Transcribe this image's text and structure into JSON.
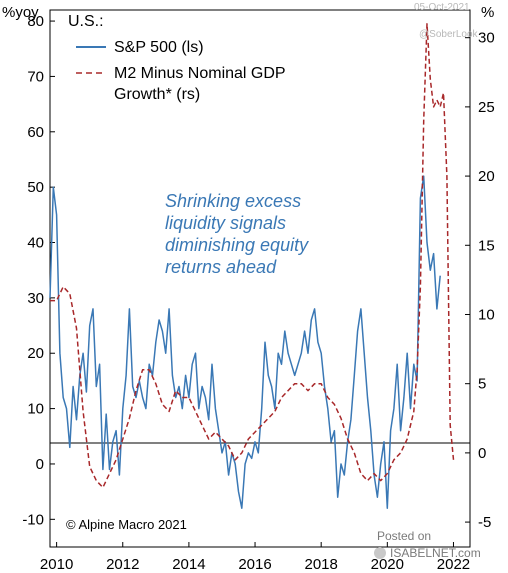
{
  "chart_data": {
    "type": "line",
    "legend_title": "U.S.:",
    "left_unit": "%yoy",
    "right_unit": "%",
    "x_ticks": [
      "2010",
      "2012",
      "2014",
      "2016",
      "2018",
      "2020",
      "2022"
    ],
    "x_range": [
      2009.8,
      2022.5
    ],
    "left_axis": {
      "range": [
        -15,
        82
      ],
      "ticks": [
        "80",
        "70",
        "60",
        "50",
        "40",
        "30",
        "20",
        "10",
        "0",
        "-10"
      ]
    },
    "right_axis": {
      "range": [
        -6.8,
        32
      ],
      "ticks": [
        "30",
        "25",
        "20",
        "15",
        "10",
        "5",
        "0",
        "-5"
      ]
    },
    "annotation": [
      "Shrinking excess",
      "liquidity signals",
      "diminishing equity",
      "returns ahead"
    ],
    "copyright": "© Alpine Macro 2021",
    "watermarks": [
      "@SoberLook",
      "05-Oct-2021"
    ],
    "posted_on": "Posted on",
    "posted_site": "ISABELNET.com",
    "series": [
      {
        "name": "S&P 500 (ls)",
        "axis": "left",
        "style": "solid",
        "color": "#3a78b5",
        "x": [
          2009.8,
          2009.9,
          2010.0,
          2010.1,
          2010.2,
          2010.3,
          2010.4,
          2010.5,
          2010.6,
          2010.7,
          2010.8,
          2010.9,
          2011.0,
          2011.1,
          2011.2,
          2011.3,
          2011.4,
          2011.5,
          2011.6,
          2011.7,
          2011.8,
          2011.9,
          2012.0,
          2012.1,
          2012.2,
          2012.3,
          2012.4,
          2012.5,
          2012.6,
          2012.7,
          2012.8,
          2012.9,
          2013.0,
          2013.1,
          2013.2,
          2013.3,
          2013.4,
          2013.5,
          2013.6,
          2013.7,
          2013.8,
          2013.9,
          2014.0,
          2014.1,
          2014.2,
          2014.3,
          2014.4,
          2014.5,
          2014.6,
          2014.7,
          2014.8,
          2014.9,
          2015.0,
          2015.1,
          2015.2,
          2015.3,
          2015.4,
          2015.5,
          2015.6,
          2015.7,
          2015.8,
          2015.9,
          2016.0,
          2016.1,
          2016.2,
          2016.3,
          2016.4,
          2016.5,
          2016.6,
          2016.7,
          2016.8,
          2016.9,
          2017.0,
          2017.1,
          2017.2,
          2017.3,
          2017.4,
          2017.5,
          2017.6,
          2017.7,
          2017.8,
          2017.9,
          2018.0,
          2018.1,
          2018.2,
          2018.3,
          2018.4,
          2018.5,
          2018.6,
          2018.7,
          2018.8,
          2018.9,
          2019.0,
          2019.1,
          2019.2,
          2019.3,
          2019.4,
          2019.5,
          2019.6,
          2019.7,
          2019.8,
          2019.9,
          2020.0,
          2020.1,
          2020.2,
          2020.3,
          2020.4,
          2020.5,
          2020.6,
          2020.7,
          2020.8,
          2020.9,
          2021.0,
          2021.1,
          2021.2,
          2021.3,
          2021.4,
          2021.5,
          2021.6
        ],
        "y": [
          30,
          50,
          45,
          20,
          12,
          10,
          3,
          14,
          8,
          16,
          20,
          13,
          25,
          28,
          14,
          18,
          -1,
          9,
          -1,
          4,
          6,
          -2,
          10,
          16,
          28,
          14,
          12,
          15,
          12,
          10,
          18,
          16,
          22,
          26,
          24,
          20,
          28,
          16,
          12,
          14,
          10,
          16,
          12,
          18,
          20,
          10,
          14,
          12,
          8,
          18,
          10,
          6,
          2,
          4,
          -2,
          2,
          0,
          -5,
          -8,
          0,
          2,
          1,
          4,
          2,
          10,
          22,
          16,
          14,
          10,
          20,
          18,
          24,
          20,
          18,
          16,
          18,
          20,
          24,
          20,
          26,
          28,
          22,
          20,
          14,
          10,
          4,
          6,
          -6,
          0,
          -2,
          4,
          8,
          16,
          24,
          28,
          20,
          12,
          6,
          -2,
          -6,
          0,
          4,
          -8,
          6,
          10,
          18,
          6,
          12,
          20,
          10,
          18,
          15,
          48,
          52,
          40,
          35,
          38,
          28,
          34
        ]
      },
      {
        "name": "M2 Minus Nominal GDP Growth* (rs)",
        "axis": "right",
        "style": "dashed",
        "color": "#a8282a",
        "x": [
          2009.8,
          2010.0,
          2010.2,
          2010.4,
          2010.6,
          2010.8,
          2011.0,
          2011.2,
          2011.4,
          2011.6,
          2011.8,
          2012.0,
          2012.2,
          2012.4,
          2012.6,
          2012.8,
          2013.0,
          2013.2,
          2013.4,
          2013.6,
          2013.8,
          2014.0,
          2014.2,
          2014.4,
          2014.6,
          2014.8,
          2015.0,
          2015.2,
          2015.4,
          2015.6,
          2015.8,
          2016.0,
          2016.2,
          2016.4,
          2016.6,
          2016.8,
          2017.0,
          2017.2,
          2017.4,
          2017.6,
          2017.8,
          2018.0,
          2018.2,
          2018.4,
          2018.6,
          2018.8,
          2019.0,
          2019.2,
          2019.4,
          2019.6,
          2019.8,
          2020.0,
          2020.2,
          2020.4,
          2020.6,
          2020.8,
          2020.9,
          2021.0,
          2021.1,
          2021.2,
          2021.3,
          2021.4,
          2021.5,
          2021.6,
          2021.7,
          2021.8,
          2021.9,
          2022.0
        ],
        "y": [
          11,
          11,
          12,
          11.5,
          9,
          3,
          -1,
          -2,
          -2.5,
          -1.5,
          -0.5,
          1,
          2.5,
          4.5,
          6,
          6,
          5,
          3.5,
          3,
          4.5,
          4,
          4,
          3,
          2,
          1,
          1.5,
          1,
          0.5,
          -0.5,
          0,
          1,
          1.5,
          2,
          2.5,
          3,
          4,
          4.5,
          5,
          5,
          4.5,
          5,
          5,
          4,
          3.5,
          2.5,
          1,
          0,
          -1.5,
          -2,
          -1.5,
          -2,
          -1.5,
          -0.5,
          0,
          1,
          3,
          6,
          12,
          24,
          31,
          27,
          25,
          25.5,
          25,
          26,
          20,
          2,
          -0.5
        ]
      }
    ]
  }
}
